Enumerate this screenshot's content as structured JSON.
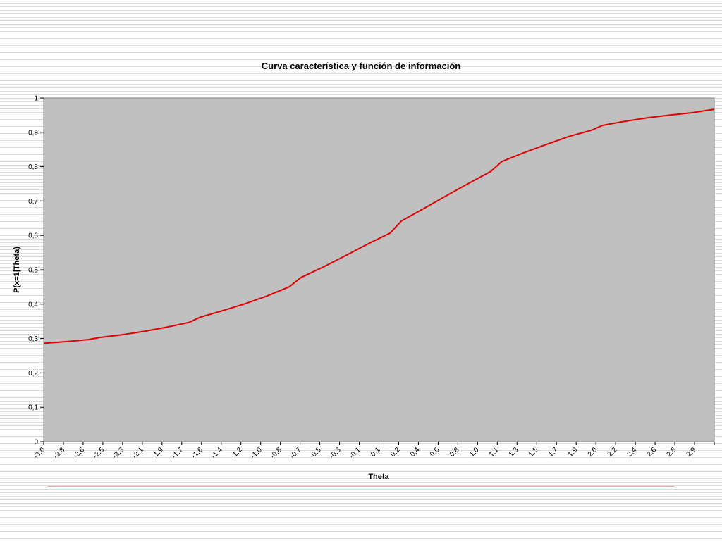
{
  "chart_data": {
    "type": "line",
    "title": "Curva característica y función de información",
    "xlabel": "Theta",
    "ylabel": "P(x=1|Theta)",
    "ylim": [
      0,
      1
    ],
    "y_ticks": [
      "0",
      "0,1",
      "0,2",
      "0,3",
      "0,4",
      "0,5",
      "0,6",
      "0,7",
      "0,8",
      "0,9",
      "1"
    ],
    "x_tick_labels": [
      "-3,0",
      "-2,8",
      "-2,6",
      "-2,5",
      "-2,3",
      "-2,1",
      "-1,9",
      "-1,7",
      "-1,6",
      "-1,4",
      "-1,2",
      "-1,0",
      "-0,8",
      "-0,7",
      "-0,5",
      "-0,3",
      "-0,1",
      "0,1",
      "0,2",
      "0,4",
      "0,6",
      "0,8",
      "1,0",
      "1,1",
      "1,3",
      "1,5",
      "1,7",
      "1,9",
      "2,0",
      "2,2",
      "2,4",
      "2,6",
      "2,8",
      "2,9"
    ],
    "grid": false,
    "plot_background": "#c0c0c0",
    "series": [
      {
        "color": "#e00000",
        "x": [
          -3.0,
          -2.8,
          -2.6,
          -2.5,
          -2.3,
          -2.1,
          -1.9,
          -1.7,
          -1.6,
          -1.4,
          -1.2,
          -1.0,
          -0.8,
          -0.7,
          -0.5,
          -0.3,
          -0.1,
          0.1,
          0.2,
          0.4,
          0.6,
          0.8,
          1.0,
          1.1,
          1.3,
          1.5,
          1.7,
          1.9,
          2.0,
          2.2,
          2.4,
          2.6,
          2.8,
          2.9,
          3.0
        ],
        "y": [
          0.286,
          0.291,
          0.297,
          0.303,
          0.311,
          0.321,
          0.333,
          0.347,
          0.362,
          0.381,
          0.401,
          0.424,
          0.451,
          0.477,
          0.508,
          0.541,
          0.575,
          0.607,
          0.642,
          0.678,
          0.715,
          0.751,
          0.786,
          0.815,
          0.841,
          0.865,
          0.888,
          0.906,
          0.92,
          0.932,
          0.942,
          0.95,
          0.957,
          0.962,
          0.967
        ]
      }
    ]
  }
}
